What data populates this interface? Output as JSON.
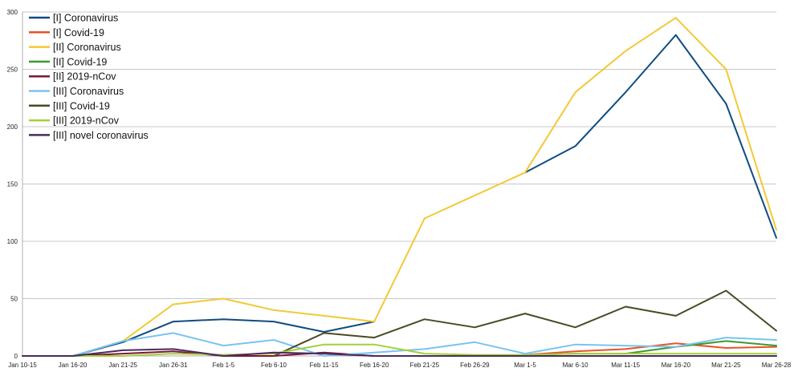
{
  "chart_data": {
    "type": "line",
    "title": "",
    "xlabel": "",
    "ylabel": "",
    "ylim": [
      0,
      300
    ],
    "yticks": [
      0,
      50,
      100,
      150,
      200,
      250,
      300
    ],
    "grid": "horizontal",
    "legend_position": "top-left",
    "categories": [
      "Jan 10-15",
      "Jan 16-20",
      "Jan 21-25",
      "Jan 26-31",
      "Feb 1-5",
      "Feb 6-10",
      "Feb 11-15",
      "Feb 16-20",
      "Feb 21-25",
      "Feb 26-29",
      "Mar 1-5",
      "Mar 6-10",
      "Mar 11-15",
      "Mar 16-20",
      "Mar 21-25",
      "Mar 26-28"
    ],
    "series": [
      {
        "name": "[I] Coronavirus",
        "color": "#0f4c81",
        "values": [
          0,
          0,
          12,
          30,
          32,
          30,
          21,
          30,
          null,
          null,
          160,
          183,
          230,
          280,
          220,
          103
        ]
      },
      {
        "name": "[I] Covid-19",
        "color": "#e8522a",
        "values": [
          null,
          null,
          null,
          null,
          null,
          null,
          null,
          null,
          null,
          null,
          1,
          4,
          6,
          11,
          7,
          8
        ]
      },
      {
        "name": "[II] Coronavirus",
        "color": "#f2c935",
        "values": [
          0,
          0,
          13,
          45,
          50,
          40,
          35,
          30,
          120,
          140,
          160,
          230,
          266,
          295,
          250,
          110
        ]
      },
      {
        "name": "[II] Covid-19",
        "color": "#3d9a2e",
        "values": [
          null,
          null,
          null,
          null,
          null,
          null,
          null,
          null,
          null,
          null,
          1,
          2,
          2,
          8,
          13,
          9
        ]
      },
      {
        "name": "[II] 2019-nCov",
        "color": "#7a1736",
        "values": [
          0,
          0,
          2,
          4,
          0,
          0,
          3,
          0,
          0,
          0,
          0,
          0,
          0,
          0,
          0,
          0
        ]
      },
      {
        "name": "[III] Coronavirus",
        "color": "#78c4f0",
        "values": [
          0,
          0,
          13,
          20,
          9,
          14,
          0,
          3,
          6,
          12,
          2,
          10,
          9,
          8,
          16,
          14
        ]
      },
      {
        "name": "[III] Covid-19",
        "color": "#4a4a24",
        "values": [
          null,
          null,
          null,
          null,
          null,
          0,
          20,
          16,
          32,
          25,
          37,
          25,
          43,
          35,
          57,
          22
        ]
      },
      {
        "name": "[III] 2019-nCov",
        "color": "#a6cf38",
        "values": [
          0,
          0,
          0,
          2,
          1,
          2,
          10,
          10,
          2,
          1,
          1,
          2,
          2,
          2,
          2,
          2
        ]
      },
      {
        "name": "[III] novel coronavirus",
        "color": "#4a2a5e",
        "values": [
          0,
          0,
          5,
          6,
          0,
          3,
          2,
          0,
          0,
          0,
          0,
          0,
          0,
          0,
          0,
          0
        ]
      }
    ]
  }
}
